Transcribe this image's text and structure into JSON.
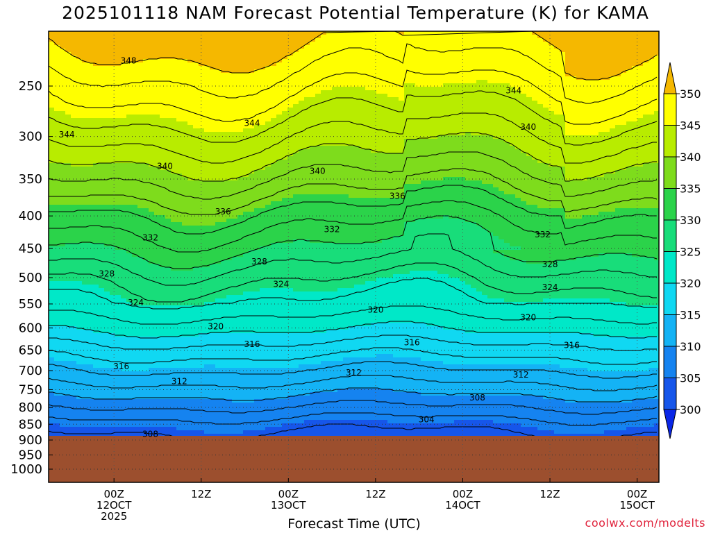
{
  "title": "2025101118 NAM Forecast Potential Temperature (K) for KAMA",
  "credit": "coolwx.com/modelts",
  "chart_data": {
    "type": "heatmap",
    "title": "2025101118 NAM Forecast Potential Temperature (K) for KAMA",
    "xlabel": "Forecast Time (UTC)",
    "ylabel": "",
    "x_range_hours": [
      -9,
      75
    ],
    "y_ticks": [
      "250",
      "300",
      "350",
      "400",
      "450",
      "500",
      "550",
      "600",
      "650",
      "700",
      "750",
      "800",
      "850",
      "900",
      "950",
      "1000"
    ],
    "x_ticks": [
      {
        "hour": 0,
        "lines": [
          "00Z",
          "12OCT",
          "2025"
        ]
      },
      {
        "hour": 12,
        "lines": [
          "12Z"
        ]
      },
      {
        "hour": 24,
        "lines": [
          "00Z",
          "13OCT"
        ]
      },
      {
        "hour": 36,
        "lines": [
          "12Z"
        ]
      },
      {
        "hour": 48,
        "lines": [
          "00Z",
          "14OCT"
        ]
      },
      {
        "hour": 60,
        "lines": [
          "12Z"
        ]
      },
      {
        "hour": 72,
        "lines": [
          "00Z",
          "15OCT"
        ]
      }
    ],
    "grid": true,
    "colorbar": {
      "ticks": [
        300,
        305,
        310,
        315,
        320,
        325,
        330,
        335,
        340,
        345,
        350
      ],
      "colors": [
        "#0a26e6",
        "#1656ea",
        "#1583f0",
        "#14b3f5",
        "#10d8f2",
        "#00e8c8",
        "#18dd7a",
        "#2bd34a",
        "#7edc1c",
        "#b8ec00",
        "#ffff00",
        "#f5b800"
      ],
      "units": "K"
    },
    "contour_labels": [
      {
        "value": 348,
        "hour": 2,
        "p": 228
      },
      {
        "value": 344,
        "hour": 55,
        "p": 254
      },
      {
        "value": 344,
        "hour": 19,
        "p": 286
      },
      {
        "value": 344,
        "hour": -6.5,
        "p": 298
      },
      {
        "value": 340,
        "hour": 57,
        "p": 290
      },
      {
        "value": 340,
        "hour": 7,
        "p": 334
      },
      {
        "value": 340,
        "hour": 28,
        "p": 340
      },
      {
        "value": 336,
        "hour": 39,
        "p": 372
      },
      {
        "value": 336,
        "hour": 15,
        "p": 394
      },
      {
        "value": 332,
        "hour": 30,
        "p": 420
      },
      {
        "value": 332,
        "hour": 5,
        "p": 433
      },
      {
        "value": 332,
        "hour": 59,
        "p": 428
      },
      {
        "value": 328,
        "hour": -1,
        "p": 493
      },
      {
        "value": 328,
        "hour": 20,
        "p": 472
      },
      {
        "value": 328,
        "hour": 60,
        "p": 477
      },
      {
        "value": 324,
        "hour": 23,
        "p": 512
      },
      {
        "value": 324,
        "hour": 3,
        "p": 547
      },
      {
        "value": 324,
        "hour": 60,
        "p": 518
      },
      {
        "value": 320,
        "hour": 36,
        "p": 562
      },
      {
        "value": 320,
        "hour": 14,
        "p": 597
      },
      {
        "value": 320,
        "hour": 57,
        "p": 578
      },
      {
        "value": 316,
        "hour": 19,
        "p": 636
      },
      {
        "value": 316,
        "hour": 41,
        "p": 632
      },
      {
        "value": 316,
        "hour": 63,
        "p": 639
      },
      {
        "value": 316,
        "hour": 1,
        "p": 690
      },
      {
        "value": 312,
        "hour": 9,
        "p": 728
      },
      {
        "value": 312,
        "hour": 33,
        "p": 705
      },
      {
        "value": 312,
        "hour": 56,
        "p": 711
      },
      {
        "value": 308,
        "hour": 50,
        "p": 772
      },
      {
        "value": 304,
        "hour": 43,
        "p": 836
      },
      {
        "value": 308,
        "hour": 5,
        "p": 881
      }
    ]
  }
}
